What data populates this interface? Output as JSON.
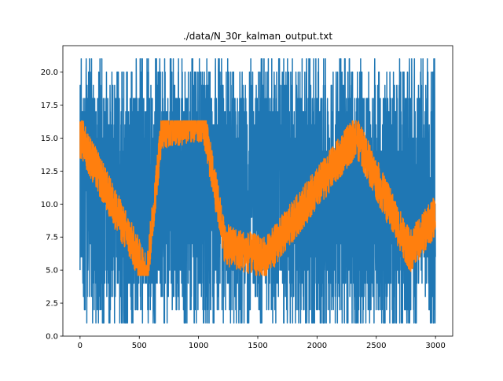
{
  "chart_data": {
    "type": "line",
    "title": "./data/N_30r_kalman_output.txt",
    "xlabel": "",
    "ylabel": "",
    "xlim": [
      -145,
      3145
    ],
    "ylim": [
      0.0,
      22.0
    ],
    "x_ticks": [
      0,
      500,
      1000,
      1500,
      2000,
      2500,
      3000
    ],
    "x_tick_labels": [
      "0",
      "500",
      "1000",
      "1500",
      "2000",
      "2500",
      "3000"
    ],
    "y_ticks": [
      0.0,
      2.5,
      5.0,
      7.5,
      10.0,
      12.5,
      15.0,
      17.5,
      20.0
    ],
    "y_tick_labels": [
      "0.0",
      "2.5",
      "5.0",
      "7.5",
      "10.0",
      "12.5",
      "15.0",
      "17.5",
      "20.0"
    ],
    "grid": false,
    "n_points": 3000,
    "series": [
      {
        "color": "#1f77b4",
        "description_values": "raw noisy integer measurements spanning 1 to 21",
        "value_range": [
          1,
          21
        ],
        "start_value": 5,
        "end_value": 6
      },
      {
        "color": "#ff7f0e",
        "description_values": "Kalman-filtered estimate fluctuating roughly between 4.5 and 16.3",
        "value_range": [
          4.6,
          16.3
        ],
        "start_value": 15.0,
        "end_value": 9.0,
        "notable_points": [
          {
            "x": 12,
            "y": 15.0
          },
          {
            "x": 565,
            "y": 4.6
          },
          {
            "x": 690,
            "y": 15.8
          },
          {
            "x": 1040,
            "y": 16.3
          },
          {
            "x": 1225,
            "y": 6.9
          },
          {
            "x": 1565,
            "y": 5.9
          },
          {
            "x": 2330,
            "y": 15.2
          },
          {
            "x": 2785,
            "y": 6.4
          },
          {
            "x": 2990,
            "y": 9.0
          }
        ]
      }
    ]
  }
}
